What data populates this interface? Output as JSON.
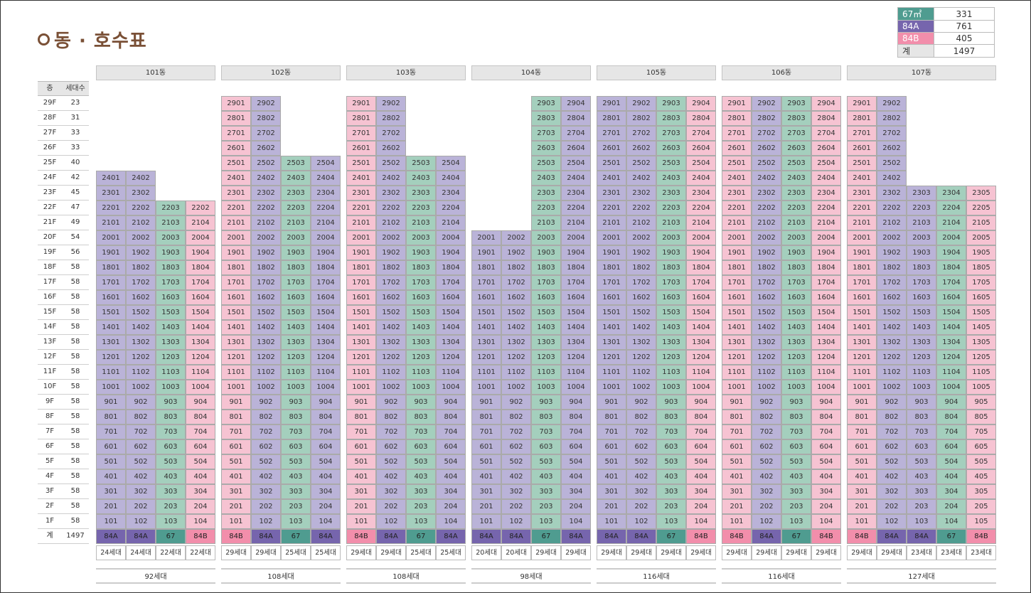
{
  "title": "동 · 호수표",
  "colors": {
    "67": "#a4cfbd",
    "84A": "#bab3d8",
    "84B": "#f6c3d2",
    "67_dark": "#4f9c90",
    "84A_dark": "#7665ad",
    "84B_dark": "#f28eab"
  },
  "legend": [
    {
      "type": "67㎡",
      "count": "331",
      "color": "#4f9c90",
      "text_color": "#ffffff"
    },
    {
      "type": "84A",
      "count": "761",
      "color": "#7665ad",
      "text_color": "#ffffff"
    },
    {
      "type": "84B",
      "count": "405",
      "color": "#f28eab",
      "text_color": "#ffffff"
    },
    {
      "type": "계",
      "count": "1497",
      "color": "#e6e6e6",
      "text_color": "#333333"
    }
  ],
  "floor_table": {
    "header_floor": "층",
    "header_units": "세대수",
    "rows": [
      [
        "29F",
        "23"
      ],
      [
        "28F",
        "31"
      ],
      [
        "27F",
        "33"
      ],
      [
        "26F",
        "33"
      ],
      [
        "25F",
        "40"
      ],
      [
        "24F",
        "42"
      ],
      [
        "23F",
        "45"
      ],
      [
        "22F",
        "47"
      ],
      [
        "21F",
        "49"
      ],
      [
        "20F",
        "54"
      ],
      [
        "19F",
        "56"
      ],
      [
        "18F",
        "58"
      ],
      [
        "17F",
        "58"
      ],
      [
        "16F",
        "58"
      ],
      [
        "15F",
        "58"
      ],
      [
        "14F",
        "58"
      ],
      [
        "13F",
        "58"
      ],
      [
        "12F",
        "58"
      ],
      [
        "11F",
        "58"
      ],
      [
        "10F",
        "58"
      ],
      [
        "9F",
        "58"
      ],
      [
        "8F",
        "58"
      ],
      [
        "7F",
        "58"
      ],
      [
        "6F",
        "58"
      ],
      [
        "5F",
        "58"
      ],
      [
        "4F",
        "58"
      ],
      [
        "3F",
        "58"
      ],
      [
        "2F",
        "58"
      ],
      [
        "1F",
        "58"
      ]
    ],
    "total_label": "계",
    "total_value": "1497"
  },
  "buildings": [
    {
      "name": "101동",
      "lines": [
        {
          "top": 24,
          "type": "84A",
          "households": "24세대"
        },
        {
          "top": 24,
          "type": "84A",
          "households": "24세대"
        },
        {
          "top": 22,
          "type": "67",
          "households": "22세대"
        },
        {
          "top": 22,
          "type": "84B",
          "households": "22세대",
          "label_22": "2202"
        }
      ],
      "total": "92세대"
    },
    {
      "name": "102동",
      "lines": [
        {
          "top": 29,
          "type": "84B",
          "households": "29세대"
        },
        {
          "top": 29,
          "type": "84A",
          "households": "29세대"
        },
        {
          "top": 25,
          "type": "67",
          "households": "25세대"
        },
        {
          "top": 25,
          "type": "84A",
          "households": "25세대"
        }
      ],
      "total": "108세대"
    },
    {
      "name": "103동",
      "lines": [
        {
          "top": 29,
          "type": "84B",
          "households": "29세대"
        },
        {
          "top": 29,
          "type": "84A",
          "households": "29세대"
        },
        {
          "top": 25,
          "type": "67",
          "households": "25세대"
        },
        {
          "top": 25,
          "type": "84A",
          "households": "25세대"
        }
      ],
      "total": "108세대"
    },
    {
      "name": "104동",
      "lines": [
        {
          "top": 20,
          "type": "84A",
          "households": "20세대"
        },
        {
          "top": 20,
          "type": "84A",
          "households": "20세대"
        },
        {
          "top": 29,
          "type": "67",
          "households": "29세대"
        },
        {
          "top": 29,
          "type": "84A",
          "households": "29세대"
        }
      ],
      "total": "98세대"
    },
    {
      "name": "105동",
      "lines": [
        {
          "top": 29,
          "type": "84A",
          "households": "29세대"
        },
        {
          "top": 29,
          "type": "84A",
          "households": "29세대"
        },
        {
          "top": 29,
          "type": "67",
          "households": "29세대"
        },
        {
          "top": 29,
          "type": "84B",
          "households": "29세대"
        }
      ],
      "total": "116세대"
    },
    {
      "name": "106동",
      "lines": [
        {
          "top": 29,
          "type": "84B",
          "households": "29세대"
        },
        {
          "top": 29,
          "type": "84A",
          "households": "29세대"
        },
        {
          "top": 29,
          "type": "67",
          "households": "29세대"
        },
        {
          "top": 29,
          "type": "84B",
          "households": "29세대"
        }
      ],
      "total": "116세대"
    },
    {
      "name": "107동",
      "lines": [
        {
          "top": 29,
          "type": "84B",
          "households": "29세대"
        },
        {
          "top": 29,
          "type": "84A",
          "households": "29세대"
        },
        {
          "top": 23,
          "type": "84A",
          "households": "23세대"
        },
        {
          "top": 23,
          "type": "67",
          "households": "23세대"
        },
        {
          "top": 23,
          "type": "84B",
          "households": "23세대"
        }
      ],
      "total": "127세대"
    }
  ]
}
